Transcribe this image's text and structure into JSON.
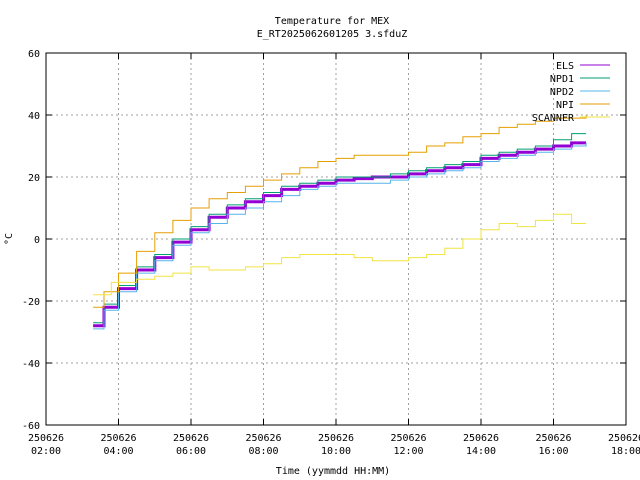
{
  "chart_data": {
    "type": "line",
    "title": "Temperature for MEX",
    "subtitle": "E_RT2025062601205 3.sfduZ",
    "xlabel": "Time (yymmdd HH:MM)",
    "ylabel": "°C",
    "ylim": [
      -60,
      60
    ],
    "yticks": [
      -60,
      -40,
      -20,
      0,
      20,
      40,
      60
    ],
    "xlim": [
      2,
      18
    ],
    "xticks": [
      {
        "value": 2,
        "date": "250626",
        "time": "02:00"
      },
      {
        "value": 4,
        "date": "250626",
        "time": "04:00"
      },
      {
        "value": 6,
        "date": "250626",
        "time": "06:00"
      },
      {
        "value": 8,
        "date": "250626",
        "time": "08:00"
      },
      {
        "value": 10,
        "date": "250626",
        "time": "10:00"
      },
      {
        "value": 12,
        "date": "250626",
        "time": "12:00"
      },
      {
        "value": 14,
        "date": "250626",
        "time": "14:00"
      },
      {
        "value": 16,
        "date": "250626",
        "time": "16:00"
      },
      {
        "value": 18,
        "date": "250626",
        "time": "18:00"
      }
    ],
    "grid": true,
    "legend_position": "top-right",
    "series": [
      {
        "name": "ELS",
        "color": "#9400d3",
        "width": 3,
        "x": [
          3.3,
          3.6,
          4.0,
          4.5,
          5.0,
          5.5,
          6.0,
          6.5,
          7.0,
          7.5,
          8.0,
          8.5,
          9.0,
          9.5,
          10.0,
          10.5,
          11.0,
          11.5,
          12.0,
          12.5,
          13.0,
          13.5,
          14.0,
          14.5,
          15.0,
          15.5,
          16.0,
          16.5,
          16.9
        ],
        "y": [
          -28,
          -22,
          -16,
          -10,
          -6,
          -1,
          3,
          7,
          10,
          12,
          14,
          16,
          17,
          18,
          19,
          19.5,
          20,
          20,
          21,
          22,
          23,
          24,
          26,
          27,
          28,
          29,
          30,
          31,
          31
        ]
      },
      {
        "name": "NPD1",
        "color": "#009e73",
        "width": 1,
        "x": [
          3.3,
          3.6,
          4.0,
          4.5,
          5.0,
          5.5,
          6.0,
          6.5,
          7.0,
          7.5,
          8.0,
          8.5,
          9.0,
          9.5,
          10.0,
          10.5,
          11.0,
          11.5,
          12.0,
          12.5,
          13.0,
          13.5,
          14.0,
          14.5,
          15.0,
          15.5,
          16.0,
          16.5,
          16.9
        ],
        "y": [
          -27,
          -21,
          -15,
          -9,
          -5,
          0,
          4,
          8,
          11,
          13,
          15,
          17,
          18,
          19,
          20,
          20,
          20,
          21,
          22,
          23,
          24,
          25,
          27,
          28,
          29,
          30,
          32,
          34,
          34
        ]
      },
      {
        "name": "NPD2",
        "color": "#56b4e9",
        "width": 1,
        "x": [
          3.3,
          3.6,
          4.0,
          4.5,
          5.0,
          5.5,
          6.0,
          6.5,
          7.0,
          7.5,
          8.0,
          8.5,
          9.0,
          9.5,
          10.0,
          10.5,
          11.0,
          11.5,
          12.0,
          12.5,
          13.0,
          13.5,
          14.0,
          14.5,
          15.0,
          15.5,
          16.0,
          16.5,
          16.9
        ],
        "y": [
          -29,
          -23,
          -17,
          -11,
          -7,
          -2,
          2,
          5,
          8,
          10,
          12,
          14,
          16,
          17,
          18,
          18,
          18,
          19,
          20,
          21,
          22,
          23,
          25,
          26,
          27,
          28,
          29,
          30,
          31
        ]
      },
      {
        "name": "NPI",
        "color": "#e69f00",
        "width": 1,
        "x": [
          3.3,
          3.6,
          4.0,
          4.5,
          5.0,
          5.5,
          6.0,
          6.5,
          7.0,
          7.5,
          8.0,
          8.5,
          9.0,
          9.5,
          10.0,
          10.5,
          11.0,
          11.5,
          12.0,
          12.5,
          13.0,
          13.5,
          14.0,
          14.5,
          15.0,
          15.5,
          16.0,
          16.5,
          16.9
        ],
        "y": [
          -22,
          -17,
          -11,
          -4,
          2,
          6,
          10,
          13,
          15,
          17,
          19,
          21,
          23,
          25,
          26,
          27,
          27,
          27,
          28,
          30,
          31,
          33,
          34,
          36,
          37,
          38,
          39,
          39,
          40
        ]
      },
      {
        "name": "SCANNER",
        "color": "#f0e442",
        "width": 1,
        "x": [
          3.3,
          3.8,
          4.5,
          5.0,
          5.5,
          6.0,
          6.5,
          7.0,
          7.5,
          8.0,
          8.5,
          9.0,
          9.5,
          10.0,
          10.5,
          11.0,
          11.5,
          12.0,
          12.5,
          13.0,
          13.5,
          14.0,
          14.5,
          15.0,
          15.5,
          16.0,
          16.5,
          16.9
        ],
        "y": [
          -18,
          -14,
          -13,
          -12,
          -11,
          -9,
          -10,
          -10,
          -9,
          -8,
          -6,
          -5,
          -5,
          -5,
          -6,
          -7,
          -7,
          -6,
          -5,
          -3,
          0,
          3,
          5,
          4,
          6,
          8,
          5,
          5
        ]
      }
    ]
  }
}
